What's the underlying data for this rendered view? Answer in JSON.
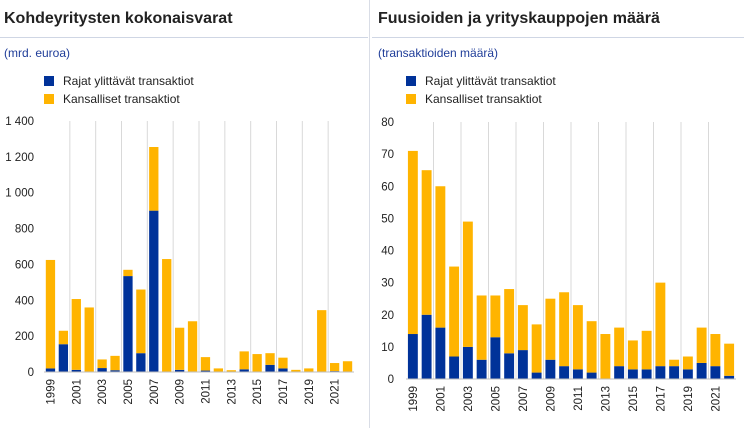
{
  "colors": {
    "cross_border": "#003299",
    "domestic": "#ffb400",
    "grid": "#d9d9d9",
    "subtitle": "#1f3d99"
  },
  "legend_cross_border": "Rajat ylittävät transaktiot",
  "legend_domestic": "Kansalliset transaktiot",
  "left": {
    "title": "Kohdeyritysten kokonaisvarat",
    "subtitle": "(mrd. euroa)"
  },
  "right": {
    "title": "Fuusioiden ja yrityskauppojen määrä",
    "subtitle": "(transaktioiden määrä)"
  },
  "chart_data": [
    {
      "type": "bar",
      "stacked": true,
      "title": "Kohdeyritysten kokonaisvarat",
      "ylabel": "(mrd. euroa)",
      "categories": [
        "1999",
        "2000",
        "2001",
        "2002",
        "2003",
        "2004",
        "2005",
        "2006",
        "2007",
        "2008",
        "2009",
        "2010",
        "2011",
        "2012",
        "2013",
        "2014",
        "2015",
        "2016",
        "2017",
        "2018",
        "2019",
        "2020",
        "2021",
        "2022"
      ],
      "x_tick_labels": [
        "1999",
        "2001",
        "2003",
        "2005",
        "2007",
        "2009",
        "2011",
        "2013",
        "2015",
        "2017",
        "2019",
        "2021"
      ],
      "ylim": [
        0,
        1400
      ],
      "y_ticks": [
        0,
        200,
        400,
        600,
        800,
        1000,
        1200,
        1400
      ],
      "y_tick_labels": [
        "0",
        "200",
        "400",
        "600",
        "800",
        "1 000",
        "1 200",
        "1 400"
      ],
      "grid": "vertical",
      "legend_position": "top-left",
      "series": [
        {
          "name": "Rajat ylittävät transaktiot",
          "values": [
            20,
            155,
            12,
            0,
            22,
            10,
            535,
            105,
            900,
            0,
            12,
            3,
            8,
            0,
            0,
            15,
            0,
            40,
            20,
            0,
            0,
            0,
            5,
            0
          ]
        },
        {
          "name": "Kansalliset transaktiot",
          "values": [
            605,
            75,
            395,
            360,
            48,
            80,
            35,
            355,
            355,
            630,
            235,
            280,
            75,
            20,
            10,
            100,
            100,
            65,
            60,
            12,
            20,
            345,
            45,
            60
          ]
        }
      ]
    },
    {
      "type": "bar",
      "stacked": true,
      "title": "Fuusioiden ja yrityskauppojen määrä",
      "ylabel": "(transaktioiden määrä)",
      "categories": [
        "1999",
        "2000",
        "2001",
        "2002",
        "2003",
        "2004",
        "2005",
        "2006",
        "2007",
        "2008",
        "2009",
        "2010",
        "2011",
        "2012",
        "2013",
        "2014",
        "2015",
        "2016",
        "2017",
        "2018",
        "2019",
        "2020",
        "2021",
        "2022"
      ],
      "x_tick_labels": [
        "1999",
        "2001",
        "2003",
        "2005",
        "2007",
        "2009",
        "2011",
        "2013",
        "2015",
        "2017",
        "2019",
        "2021"
      ],
      "ylim": [
        0,
        80
      ],
      "y_ticks": [
        0,
        10,
        20,
        30,
        40,
        50,
        60,
        70,
        80
      ],
      "y_tick_labels": [
        "0",
        "10",
        "20",
        "30",
        "40",
        "50",
        "60",
        "70",
        "80"
      ],
      "grid": "vertical",
      "legend_position": "top-left",
      "series": [
        {
          "name": "Rajat ylittävät transaktiot",
          "values": [
            14,
            20,
            16,
            7,
            10,
            6,
            13,
            8,
            9,
            2,
            6,
            4,
            3,
            2,
            0,
            4,
            3,
            3,
            4,
            4,
            3,
            5,
            4,
            1
          ]
        },
        {
          "name": "Kansalliset transaktiot",
          "values": [
            57,
            45,
            44,
            28,
            39,
            20,
            13,
            20,
            14,
            15,
            19,
            23,
            20,
            16,
            14,
            12,
            9,
            12,
            26,
            2,
            4,
            11,
            10,
            10
          ]
        }
      ]
    }
  ]
}
